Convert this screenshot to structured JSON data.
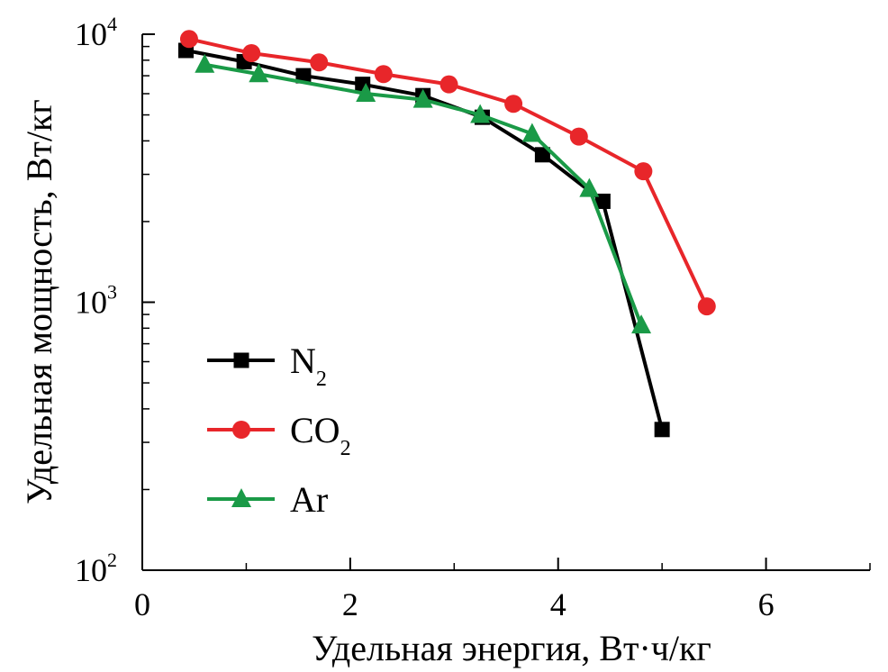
{
  "chart_data": {
    "type": "line",
    "title": "",
    "xlabel": "Удельная энергия, Вт·ч/кг",
    "ylabel": "Удельная мощность, Вт/кг",
    "xlim": [
      0,
      7
    ],
    "ylim": [
      100,
      10000
    ],
    "yscale": "log",
    "xticks": [
      {
        "value": 0,
        "label": "0"
      },
      {
        "value": 2,
        "label": "2"
      },
      {
        "value": 4,
        "label": "4"
      },
      {
        "value": 6,
        "label": "6"
      }
    ],
    "yticks": [
      {
        "value": 100,
        "base": "10",
        "exp": "2"
      },
      {
        "value": 1000,
        "base": "10",
        "exp": "3"
      },
      {
        "value": 10000,
        "base": "10",
        "exp": "4"
      }
    ],
    "grid": false,
    "legend_position": "lower-left",
    "series": [
      {
        "name": "N",
        "sub": "2",
        "color": "#000000",
        "marker": "square",
        "x": [
          0.42,
          0.98,
          1.55,
          2.12,
          2.7,
          3.27,
          3.85,
          4.43,
          5.0
        ],
        "y": [
          8700,
          7900,
          7000,
          6500,
          5900,
          4900,
          3550,
          2380,
          335
        ]
      },
      {
        "name": "CO",
        "sub": "2",
        "color": "#e8262a",
        "marker": "circle",
        "x": [
          0.45,
          1.05,
          1.7,
          2.32,
          2.95,
          3.57,
          4.2,
          4.82,
          5.43
        ],
        "y": [
          9600,
          8500,
          7850,
          7100,
          6500,
          5500,
          4150,
          3080,
          965
        ]
      },
      {
        "name": "Ar",
        "sub": "",
        "color": "#1a9a47",
        "marker": "triangle",
        "x": [
          0.6,
          1.12,
          2.15,
          2.7,
          3.25,
          3.75,
          4.3,
          4.8
        ],
        "y": [
          7700,
          7100,
          6000,
          5700,
          5000,
          4250,
          2650,
          820
        ]
      }
    ]
  }
}
